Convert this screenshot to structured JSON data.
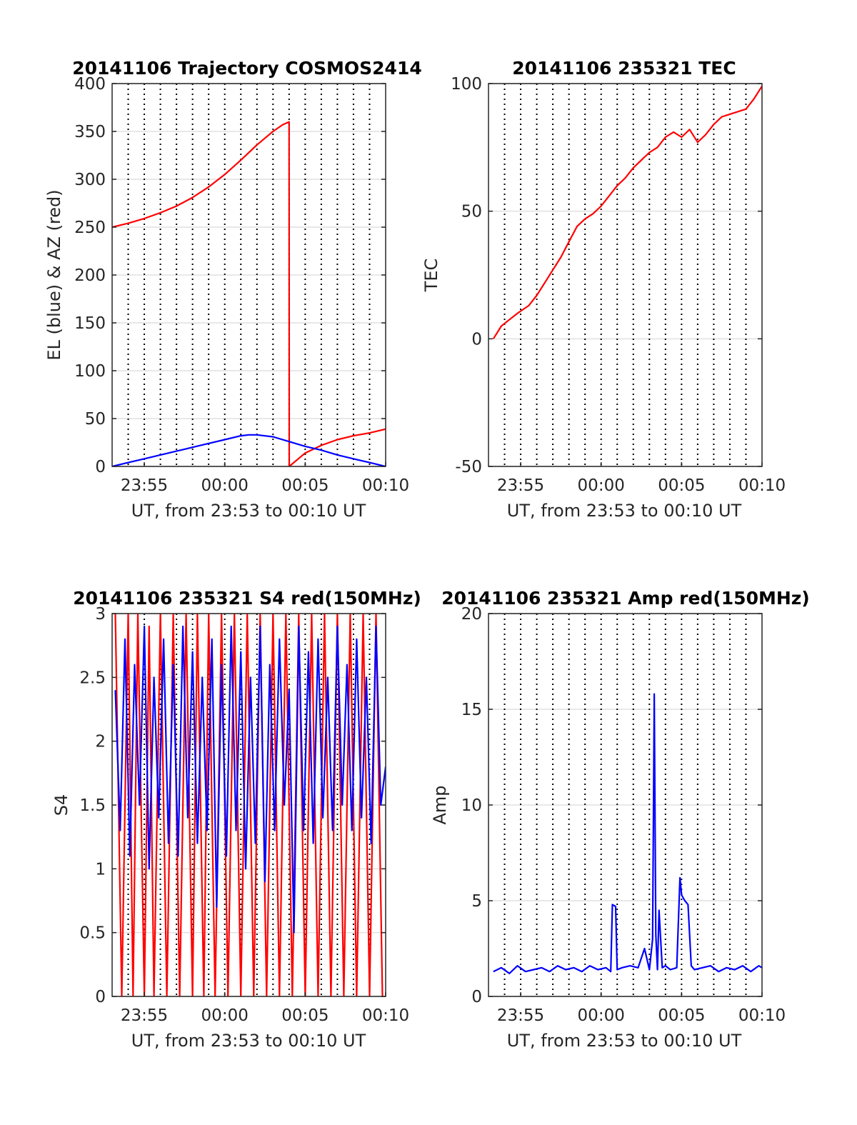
{
  "figure": {
    "background": "#ffffff",
    "grid_color": "#e0e0e0",
    "vline_color": "#000000",
    "axis_color": "#262626"
  },
  "chart_data": [
    {
      "id": "trajectory",
      "type": "line",
      "title": "20141106 Trajectory COSMOS2414",
      "xlabel": "UT, from 23:53 to 00:10 UT",
      "ylabel": "EL (blue) & AZ (red)",
      "x_unit": "minutes after 23:53 UT",
      "xlim": [
        0,
        17
      ],
      "ylim": [
        0,
        400
      ],
      "x_ticks": [
        {
          "x": 2,
          "label": "23:55"
        },
        {
          "x": 7,
          "label": "00:00"
        },
        {
          "x": 12,
          "label": "00:05"
        },
        {
          "x": 17,
          "label": "00:10"
        }
      ],
      "y_ticks": [
        0,
        50,
        100,
        150,
        200,
        250,
        300,
        350,
        400
      ],
      "dotted_vlines": [
        1,
        2,
        3,
        4,
        5,
        6,
        7,
        8,
        9,
        10,
        11,
        12,
        13,
        14,
        15,
        16
      ],
      "grid": true,
      "series": [
        {
          "name": "AZ",
          "color": "#ff0000",
          "x": [
            0,
            1,
            2,
            3,
            4,
            5,
            6,
            7,
            8,
            9,
            10,
            10.6,
            11.0,
            11.01,
            12,
            13,
            14,
            15,
            16,
            17
          ],
          "y": [
            250,
            254,
            259,
            265,
            272,
            281,
            292,
            305,
            320,
            336,
            350,
            357,
            360,
            0,
            14,
            22,
            28,
            32,
            35,
            39
          ]
        },
        {
          "name": "EL",
          "color": "#0000ff",
          "x": [
            0,
            1,
            2,
            3,
            4,
            5,
            6,
            7,
            8,
            8.5,
            9,
            10,
            11,
            12,
            13,
            14,
            15,
            16,
            17
          ],
          "y": [
            0,
            4,
            8,
            12,
            16,
            20,
            24,
            28,
            32,
            33,
            33,
            31,
            26,
            21,
            17,
            12,
            8,
            4,
            0
          ]
        }
      ]
    },
    {
      "id": "tec",
      "type": "line",
      "title": "20141106 235321 TEC",
      "xlabel": "UT, from 23:53 to 00:10 UT",
      "ylabel": "TEC",
      "x_unit": "minutes after 23:53 UT",
      "xlim": [
        0,
        17
      ],
      "ylim": [
        -50,
        100
      ],
      "x_ticks": [
        {
          "x": 2,
          "label": "23:55"
        },
        {
          "x": 7,
          "label": "00:00"
        },
        {
          "x": 12,
          "label": "00:05"
        },
        {
          "x": 17,
          "label": "00:10"
        }
      ],
      "y_ticks": [
        -50,
        0,
        50,
        100
      ],
      "dotted_vlines": [
        1,
        2,
        3,
        4,
        5,
        6,
        7,
        8,
        9,
        10,
        11,
        12,
        13,
        14,
        15,
        16
      ],
      "grid": true,
      "series": [
        {
          "name": "TEC",
          "color": "#ff0000",
          "x": [
            0.3,
            0.8,
            1.2,
            1.8,
            2.5,
            3.0,
            3.5,
            4.0,
            4.5,
            5.0,
            5.5,
            6.0,
            6.5,
            7.0,
            7.5,
            8.0,
            8.5,
            9.0,
            9.5,
            10.0,
            10.5,
            11.0,
            11.5,
            12.0,
            12.5,
            13.0,
            13.5,
            14.0,
            14.5,
            15.0,
            15.5,
            16.0,
            16.5,
            17.0
          ],
          "y": [
            0,
            5,
            7,
            10,
            13,
            17,
            22,
            27,
            32,
            38,
            44,
            47,
            49,
            52,
            56,
            60,
            63,
            67,
            70,
            73,
            75,
            79,
            81,
            79,
            82,
            77,
            80,
            84,
            87,
            88,
            89,
            90,
            94,
            99
          ]
        }
      ]
    },
    {
      "id": "s4",
      "type": "line",
      "title": "20141106 235321 S4 red(150MHz)",
      "xlabel": "UT, from 23:53 to 00:10 UT",
      "ylabel": "S4",
      "x_unit": "minutes after 23:53 UT",
      "xlim": [
        0,
        17
      ],
      "ylim": [
        0,
        3
      ],
      "x_ticks": [
        {
          "x": 2,
          "label": "23:55"
        },
        {
          "x": 7,
          "label": "00:00"
        },
        {
          "x": 12,
          "label": "00:05"
        },
        {
          "x": 17,
          "label": "00:10"
        }
      ],
      "y_ticks": [
        0,
        0.5,
        1,
        1.5,
        2,
        2.5,
        3
      ],
      "y_tick_labels": [
        "0",
        "0.5",
        "1",
        "1.5",
        "2",
        "2.5",
        "3"
      ],
      "dotted_vlines": [
        1,
        2,
        3,
        4,
        5,
        6,
        7,
        8,
        9,
        10,
        11,
        12,
        13,
        14,
        15,
        16
      ],
      "grid": true,
      "series": [
        {
          "name": "red",
          "color": "#ff0000",
          "x": [
            0.2,
            0.6,
            1.0,
            1.3,
            1.6,
            2.0,
            2.3,
            2.6,
            3.0,
            3.4,
            3.8,
            4.2,
            4.6,
            5.0,
            5.3,
            5.7,
            6.0,
            6.4,
            6.8,
            7.2,
            7.6,
            8.0,
            8.4,
            8.8,
            9.2,
            9.6,
            10.0,
            10.4,
            10.8,
            11.2,
            11.6,
            12.0,
            12.4,
            12.8,
            13.2,
            13.6,
            14.0,
            14.4,
            14.8,
            15.2,
            15.6,
            16.0,
            16.4,
            16.8
          ],
          "y": [
            3,
            0,
            3,
            0,
            3,
            0,
            2.9,
            0,
            3,
            0,
            3,
            0,
            3,
            0,
            3,
            0,
            3,
            0,
            3,
            0,
            3,
            0,
            3,
            0,
            3,
            0,
            3,
            0,
            3,
            0,
            3,
            0,
            3,
            0,
            3,
            0,
            3,
            0,
            3,
            0,
            3,
            0,
            3,
            0
          ]
        },
        {
          "name": "blue",
          "color": "#0000ff",
          "x": [
            0.2,
            0.5,
            0.8,
            1.1,
            1.4,
            1.7,
            2.0,
            2.3,
            2.6,
            2.9,
            3.2,
            3.5,
            3.8,
            4.1,
            4.4,
            4.7,
            5.0,
            5.3,
            5.6,
            5.9,
            6.2,
            6.5,
            6.8,
            7.1,
            7.4,
            7.7,
            8.0,
            8.3,
            8.6,
            8.9,
            9.2,
            9.5,
            9.8,
            10.1,
            10.4,
            10.7,
            11.0,
            11.3,
            11.6,
            11.9,
            12.2,
            12.5,
            12.8,
            13.1,
            13.4,
            13.7,
            14.0,
            14.3,
            14.6,
            14.9,
            15.2,
            15.5,
            15.8,
            16.1,
            16.4,
            16.7,
            17.0
          ],
          "y": [
            2.4,
            1.3,
            2.8,
            1.1,
            2.6,
            1.5,
            2.9,
            1.0,
            2.5,
            1.4,
            2.8,
            1.2,
            2.6,
            1.1,
            2.9,
            1.4,
            2.7,
            1.2,
            2.5,
            1.3,
            2.8,
            0.7,
            2.6,
            1.1,
            2.9,
            1.3,
            2.7,
            1.0,
            2.5,
            1.2,
            2.9,
            0.9,
            2.6,
            1.3,
            2.8,
            1.5,
            2.4,
            0.5,
            2.9,
            1.3,
            2.7,
            1.2,
            2.8,
            1.4,
            2.5,
            1.3,
            2.9,
            1.5,
            2.6,
            1.3,
            2.8,
            1.4,
            2.5,
            1.2,
            2.9,
            1.5,
            1.8
          ]
        }
      ]
    },
    {
      "id": "amp",
      "type": "line",
      "title": "20141106 235321 Amp red(150MHz)",
      "xlabel": "UT, from 23:53 to 00:10 UT",
      "ylabel": "Amp",
      "x_unit": "minutes after 23:53 UT",
      "xlim": [
        0,
        17
      ],
      "ylim": [
        0,
        20
      ],
      "x_ticks": [
        {
          "x": 2,
          "label": "23:55"
        },
        {
          "x": 7,
          "label": "00:00"
        },
        {
          "x": 12,
          "label": "00:05"
        },
        {
          "x": 17,
          "label": "00:10"
        }
      ],
      "y_ticks": [
        0,
        5,
        10,
        15,
        20
      ],
      "dotted_vlines": [
        1,
        2,
        3,
        4,
        5,
        6,
        7,
        8,
        9,
        10,
        11,
        12,
        13,
        14,
        15,
        16
      ],
      "grid": true,
      "series": [
        {
          "name": "Amp",
          "color": "#0000ff",
          "x": [
            0.3,
            0.8,
            1.3,
            1.8,
            2.3,
            2.8,
            3.3,
            3.8,
            4.3,
            4.8,
            5.3,
            5.8,
            6.3,
            6.8,
            7.3,
            7.6,
            7.7,
            7.9,
            8.0,
            8.3,
            8.8,
            9.3,
            9.7,
            10.0,
            10.2,
            10.3,
            10.4,
            10.5,
            10.6,
            10.8,
            11.0,
            11.3,
            11.7,
            11.9,
            12.0,
            12.2,
            12.4,
            12.6,
            12.8,
            13.3,
            13.8,
            14.3,
            14.8,
            15.3,
            15.8,
            16.3,
            16.8,
            17.0
          ],
          "y": [
            1.3,
            1.5,
            1.2,
            1.6,
            1.3,
            1.4,
            1.5,
            1.3,
            1.6,
            1.4,
            1.5,
            1.3,
            1.6,
            1.4,
            1.5,
            1.3,
            4.8,
            4.7,
            1.4,
            1.5,
            1.6,
            1.5,
            2.5,
            1.4,
            3.0,
            15.8,
            3.2,
            1.4,
            4.5,
            1.5,
            1.6,
            1.4,
            1.5,
            6.2,
            5.3,
            5.0,
            4.8,
            1.6,
            1.4,
            1.5,
            1.6,
            1.3,
            1.5,
            1.4,
            1.6,
            1.3,
            1.6,
            1.5
          ]
        }
      ]
    }
  ]
}
